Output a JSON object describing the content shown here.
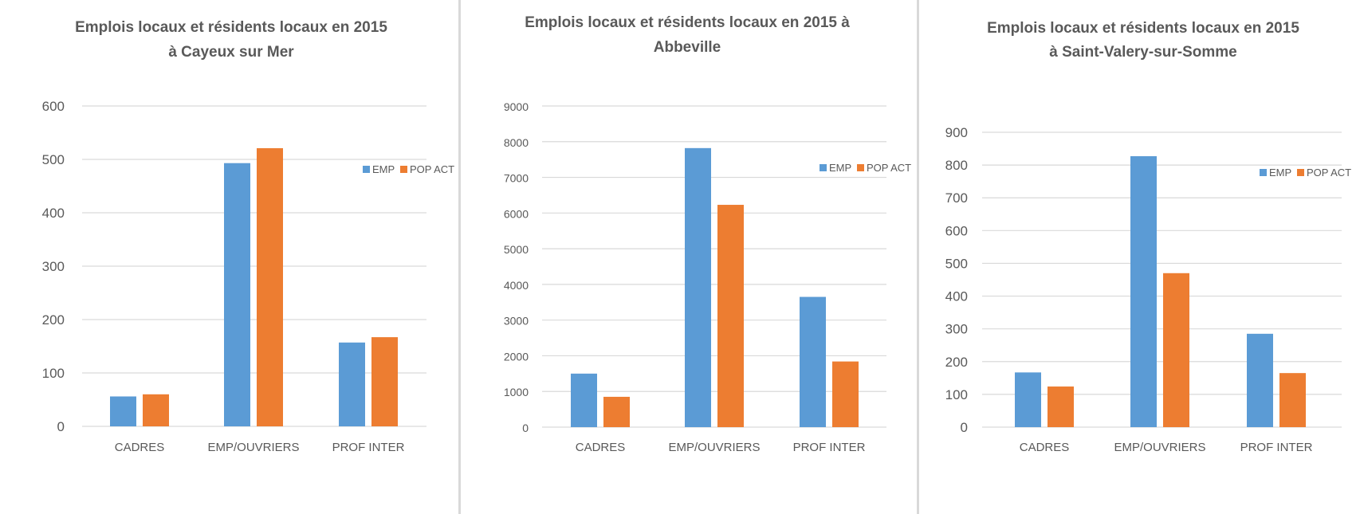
{
  "colors": {
    "EMP": "#5b9bd5",
    "POP ACT": "#ed7d31",
    "grid": "#d9d9d9",
    "text": "#595959"
  },
  "chart_data": [
    {
      "type": "bar",
      "title": [
        "Emplois locaux et résidents locaux en 2015",
        "à Cayeux sur Mer"
      ],
      "categories": [
        "CADRES",
        "EMP/OUVRIERS",
        "PROF INTER"
      ],
      "series": [
        {
          "name": "EMP",
          "values": [
            56,
            493,
            157
          ]
        },
        {
          "name": "POP ACT",
          "values": [
            60,
            521,
            167
          ]
        }
      ],
      "ylim": [
        0,
        600
      ],
      "yticks": [
        0,
        100,
        200,
        300,
        400,
        500,
        600
      ],
      "legend": "right",
      "grid": true
    },
    {
      "type": "bar",
      "title": [
        "Emplois locaux et résidents locaux en 2015 à",
        "Abbeville"
      ],
      "categories": [
        "CADRES",
        "EMP/OUVRIERS",
        "PROF INTER"
      ],
      "series": [
        {
          "name": "EMP",
          "values": [
            1500,
            7820,
            3650
          ]
        },
        {
          "name": "POP ACT",
          "values": [
            850,
            6230,
            1840
          ]
        }
      ],
      "ylim": [
        0,
        9000
      ],
      "yticks": [
        0,
        1000,
        2000,
        3000,
        4000,
        5000,
        6000,
        7000,
        8000,
        9000
      ],
      "legend": "right",
      "grid": true
    },
    {
      "type": "bar",
      "title": [
        "Emplois locaux et résidents locaux en 2015",
        "à Saint-Valery-sur-Somme"
      ],
      "categories": [
        "CADRES",
        "EMP/OUVRIERS",
        "PROF INTER"
      ],
      "series": [
        {
          "name": "EMP",
          "values": [
            167,
            827,
            285
          ]
        },
        {
          "name": "POP ACT",
          "values": [
            124,
            470,
            165
          ]
        }
      ],
      "ylim": [
        0,
        900
      ],
      "yticks": [
        0,
        100,
        200,
        300,
        400,
        500,
        600,
        700,
        800,
        900
      ],
      "legend": "right",
      "grid": true
    }
  ]
}
